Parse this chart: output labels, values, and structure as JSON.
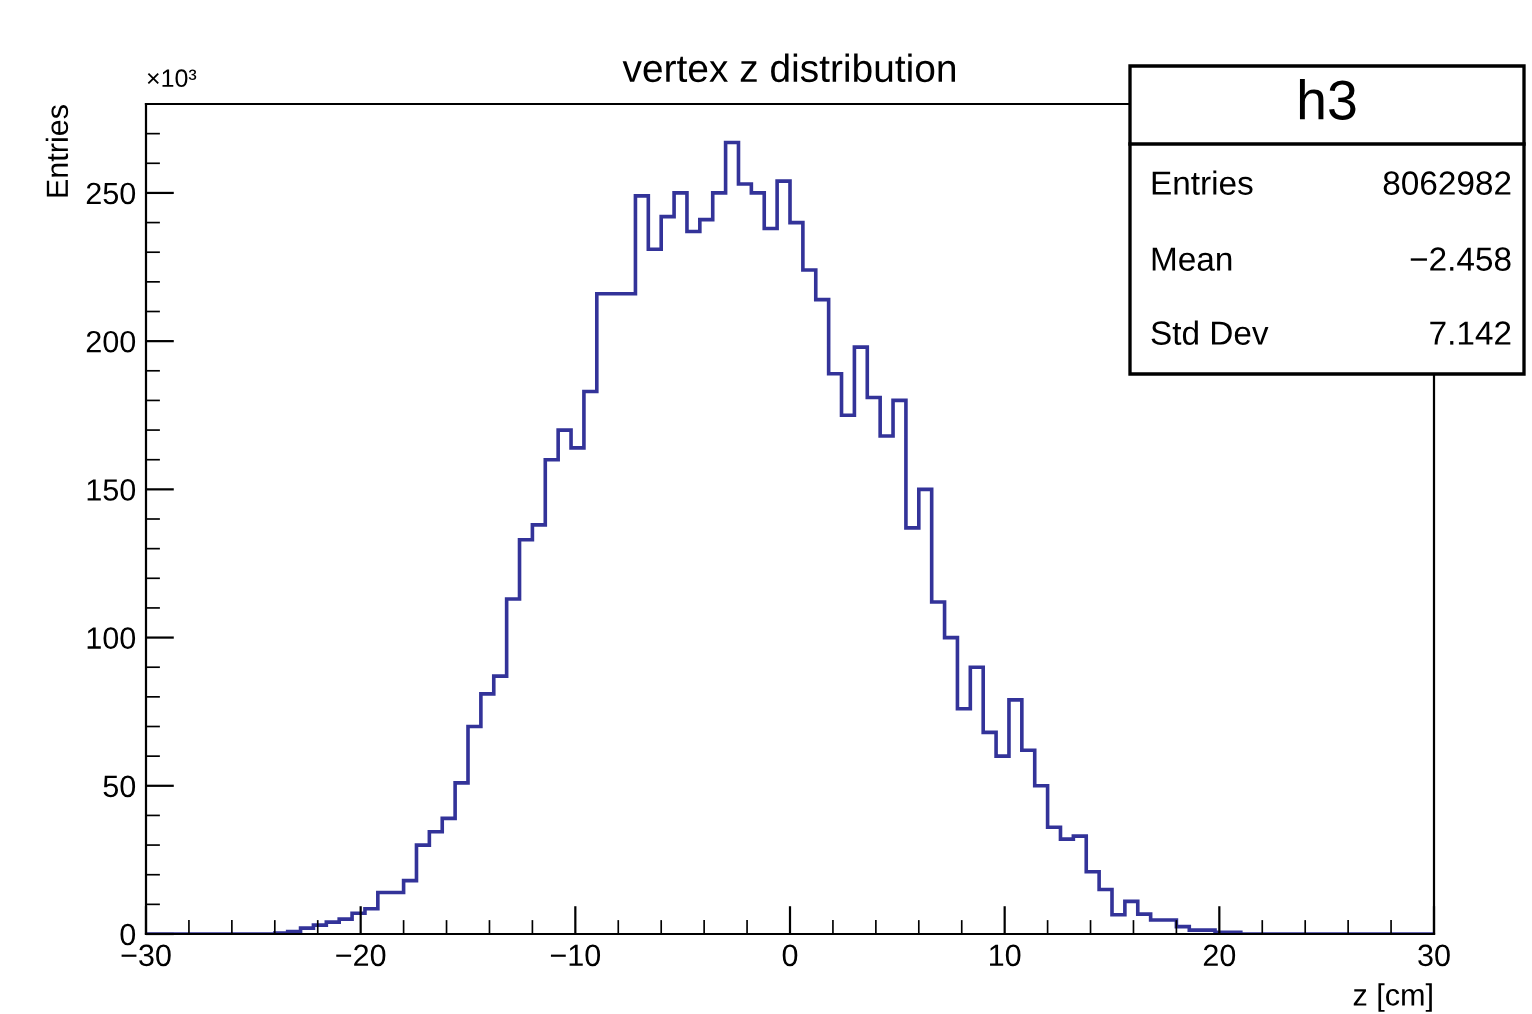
{
  "chart_data": {
    "type": "histogram",
    "title": "vertex z distribution",
    "xlabel": "z [cm]",
    "ylabel": "Entries",
    "bins": [
      -30,
      -29.4,
      -28.8,
      -28.2,
      -27.6,
      -27,
      -26.4,
      -25.8,
      -25.2,
      -24.6,
      -24,
      -23.4,
      -22.8,
      -22.2,
      -21.6,
      -21,
      -20.4,
      -19.8,
      -19.2,
      -18.6,
      -18,
      -17.4,
      -16.8,
      -16.2,
      -15.6,
      -15,
      -14.4,
      -13.8,
      -13.2,
      -12.6,
      -12,
      -11.4,
      -10.8,
      -10.2,
      -9.6,
      -9,
      -8.4,
      -7.8,
      -7.2,
      -6.6,
      -6,
      -5.4,
      -4.8,
      -4.2,
      -3.6,
      -3,
      -2.4,
      -1.8,
      -1.2,
      -0.6,
      0,
      0.6,
      1.2,
      1.8,
      2.4,
      3,
      3.6,
      4.2,
      4.8,
      5.4,
      6,
      6.6,
      7.2,
      7.8,
      8.4,
      9,
      9.6,
      10.2,
      10.8,
      11.4,
      12,
      12.6,
      13.2,
      13.8,
      14.4,
      15,
      15.6,
      16.2,
      16.8,
      17.4,
      18,
      18.6,
      19.2,
      19.8,
      20.4,
      21,
      21.6,
      22.2,
      22.8,
      23.4,
      24,
      24.6,
      25.2,
      25.8,
      26.4,
      27,
      27.6,
      28.2,
      28.8,
      29.4,
      30
    ],
    "values": [
      0,
      0,
      0,
      0,
      0,
      0,
      0,
      0,
      0,
      0,
      0.3,
      0.8,
      2,
      3,
      4,
      5,
      7,
      8.5,
      14,
      14,
      18,
      30,
      34.5,
      39,
      51,
      70,
      81,
      87,
      113,
      133,
      138,
      160,
      170,
      164,
      183,
      216,
      216,
      216,
      249,
      231,
      242,
      250,
      237,
      241,
      250,
      267,
      253,
      250,
      238,
      254,
      240,
      224,
      214,
      189,
      175,
      198,
      181,
      168,
      180,
      137,
      150,
      112,
      100,
      76,
      90,
      68,
      60,
      79,
      62,
      50,
      36,
      32,
      33,
      21,
      15,
      6.5,
      11,
      6.7,
      4.7,
      4.7,
      2.5,
      1.3,
      1.3,
      0.6,
      0.6,
      0,
      0,
      0,
      0,
      0,
      0,
      0,
      0,
      0,
      0,
      0,
      0,
      0,
      0,
      0
    ],
    "color": "#333399",
    "xlim": [
      -30,
      30
    ],
    "xticks": [
      {
        "value": -30,
        "label": "−30"
      },
      {
        "value": -20,
        "label": "−20"
      },
      {
        "value": -10,
        "label": "−10"
      },
      0,
      10,
      20,
      30
    ],
    "ylim": [
      0,
      280
    ],
    "yticks": [
      0,
      50,
      100,
      150,
      200,
      250
    ],
    "grid": false,
    "annotations": [
      "×10³",
      "h3",
      "Entries",
      "8062982",
      "Mean",
      "−2.458",
      "Std Dev",
      "7.142"
    ]
  }
}
